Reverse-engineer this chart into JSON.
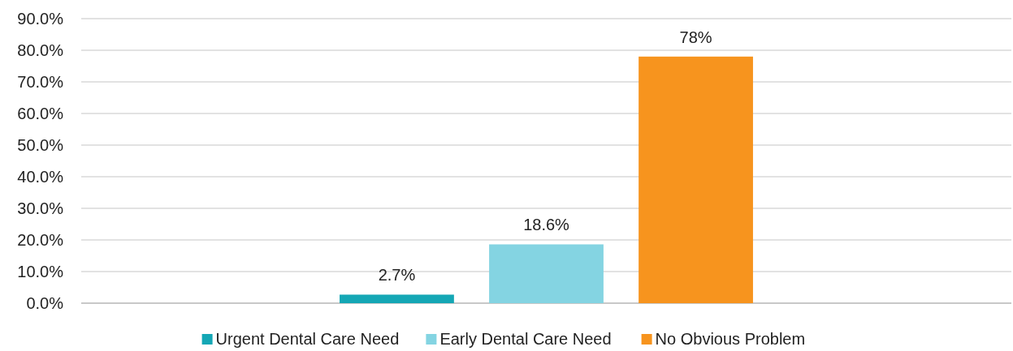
{
  "chart_data": {
    "type": "bar",
    "categories": [
      null
    ],
    "series": [
      {
        "name": "Urgent Dental Care Need",
        "color": "#14a7b5",
        "values": [
          2.7
        ],
        "value_labels": [
          "2.7%"
        ]
      },
      {
        "name": "Early Dental Care Need",
        "color": "#84d4e2",
        "values": [
          18.6
        ],
        "value_labels": [
          "18.6%"
        ]
      },
      {
        "name": "No Obvious Problem",
        "color": "#f7941e",
        "values": [
          78
        ],
        "value_labels": [
          "78%"
        ]
      }
    ],
    "ylim": [
      0,
      90
    ],
    "yticks": [
      {
        "value": 0,
        "label": "0.0%"
      },
      {
        "value": 10,
        "label": "10.0%"
      },
      {
        "value": 20,
        "label": "20.0%"
      },
      {
        "value": 30,
        "label": "30.0%"
      },
      {
        "value": 40,
        "label": "40.0%"
      },
      {
        "value": 50,
        "label": "50.0%"
      },
      {
        "value": 60,
        "label": "60.0%"
      },
      {
        "value": 70,
        "label": "70.0%"
      },
      {
        "value": 80,
        "label": "80.0%"
      },
      {
        "value": 90,
        "label": "90.0%"
      }
    ],
    "grid": "y",
    "legend": "bottom"
  }
}
